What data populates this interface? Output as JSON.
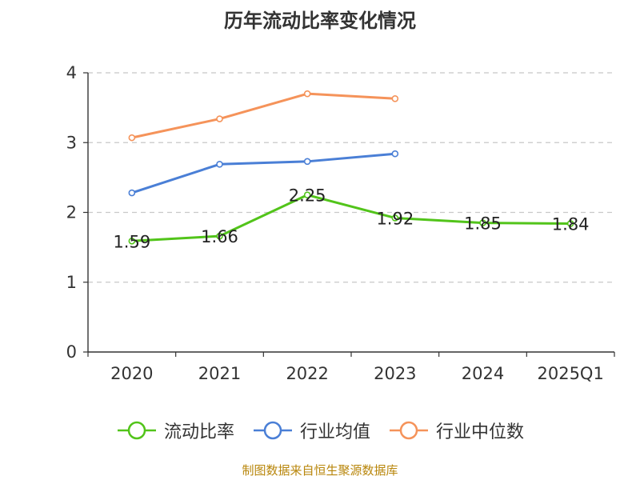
{
  "source_note": "制图数据来自恒生聚源数据库",
  "chart_data": {
    "type": "line",
    "title": "历年流动比率变化情况",
    "xlabel": "",
    "ylabel": "",
    "categories": [
      "2020",
      "2021",
      "2022",
      "2023",
      "2024",
      "2025Q1"
    ],
    "ylim": [
      0,
      4
    ],
    "yticks": [
      0,
      1,
      2,
      3,
      4
    ],
    "grid": true,
    "legend_position": "bottom",
    "series": [
      {
        "name": "流动比率",
        "color": "#52c41a",
        "values": [
          1.59,
          1.66,
          2.25,
          1.92,
          1.85,
          1.84
        ],
        "data_labels": [
          "1.59",
          "1.66",
          "2.25",
          "1.92",
          "1.85",
          "1.84"
        ]
      },
      {
        "name": "行业均值",
        "color": "#4a7fd6",
        "values": [
          2.28,
          2.69,
          2.73,
          2.84,
          null,
          null
        ]
      },
      {
        "name": "行业中位数",
        "color": "#f5935a",
        "values": [
          3.07,
          3.34,
          3.7,
          3.63,
          null,
          null
        ]
      }
    ]
  }
}
